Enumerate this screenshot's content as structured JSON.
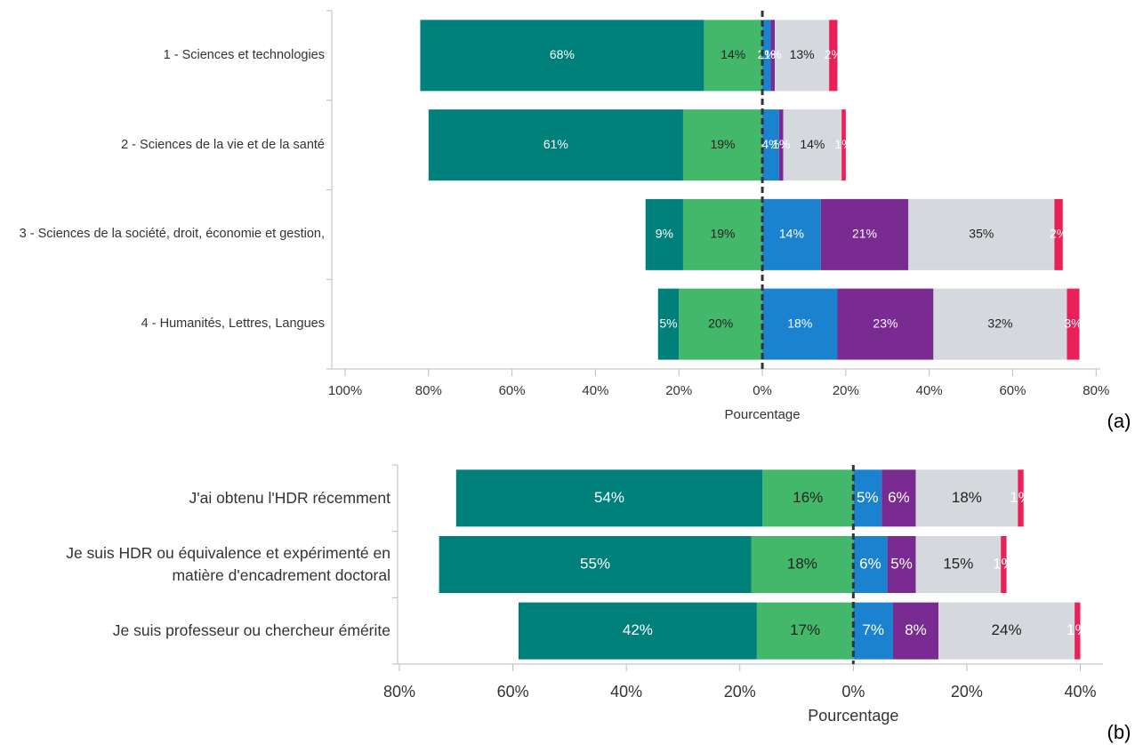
{
  "chart_data": [
    {
      "type": "diverging-bar",
      "x_label": "Pourcentage",
      "annotation": "(a)",
      "categories": [
        "1 - Sciences et technologies",
        "2 - Sciences de la vie et de la santé",
        "3 - Sciences de la société, droit, économie et gestion,",
        "4 - Humanités, Lettres, Langues"
      ],
      "series": [
        {
          "color": "#00807a",
          "label_color": "#ffffff",
          "side": "left",
          "values": [
            68,
            61,
            9,
            5
          ],
          "value_labels": [
            "68%",
            "61%",
            "9%",
            "5%"
          ]
        },
        {
          "color": "#43b86a",
          "label_color": "#222222",
          "side": "left",
          "values": [
            14,
            19,
            19,
            20
          ],
          "value_labels": [
            "14%",
            "19%",
            "19%",
            "20%"
          ]
        },
        {
          "color": "#1a82cf",
          "label_color": "#ffffff",
          "side": "right",
          "values": [
            2,
            4,
            14,
            18
          ],
          "value_labels": [
            "2%",
            "4%",
            "14%",
            "18%"
          ]
        },
        {
          "color": "#7a2b91",
          "label_color": "#ffffff",
          "side": "right",
          "values": [
            1,
            1,
            21,
            23
          ],
          "value_labels": [
            "1%",
            "1%",
            "21%",
            "23%"
          ]
        },
        {
          "color": "#d5d8dc",
          "label_color": "#222222",
          "side": "right",
          "values": [
            13,
            14,
            35,
            32
          ],
          "value_labels": [
            "13%",
            "14%",
            "35%",
            "32%"
          ]
        },
        {
          "color": "#ea2159",
          "label_color": "#ffffff",
          "side": "right",
          "values": [
            2,
            1,
            2,
            3
          ],
          "value_labels": [
            "2%",
            "1%",
            "2%",
            "3%"
          ]
        }
      ],
      "xlim": [
        -100,
        81
      ],
      "xticks": [
        {
          "value": -100,
          "label": "100%"
        },
        {
          "value": -80,
          "label": "80%"
        },
        {
          "value": -60,
          "label": "60%"
        },
        {
          "value": -40,
          "label": "40%"
        },
        {
          "value": -20,
          "label": "20%"
        },
        {
          "value": 0,
          "label": "0%"
        },
        {
          "value": 20,
          "label": "20%"
        },
        {
          "value": 40,
          "label": "40%"
        },
        {
          "value": 60,
          "label": "60%"
        },
        {
          "value": 80,
          "label": "80%"
        }
      ]
    },
    {
      "type": "diverging-bar",
      "x_label": "Pourcentage",
      "annotation": "(b)",
      "categories": [
        "J'ai obtenu l'HDR récemment",
        "Je suis HDR ou équivalence et expérimenté en matière d'encadrement doctoral",
        "Je suis professeur ou chercheur émérite"
      ],
      "series": [
        {
          "color": "#00807a",
          "label_color": "#ffffff",
          "side": "left",
          "values": [
            54,
            55,
            42
          ],
          "value_labels": [
            "54%",
            "55%",
            "42%"
          ]
        },
        {
          "color": "#43b86a",
          "label_color": "#222222",
          "side": "left",
          "values": [
            16,
            18,
            17
          ],
          "value_labels": [
            "16%",
            "18%",
            "17%"
          ]
        },
        {
          "color": "#1a82cf",
          "label_color": "#ffffff",
          "side": "right",
          "values": [
            5,
            6,
            7
          ],
          "value_labels": [
            "5%",
            "6%",
            "7%"
          ]
        },
        {
          "color": "#7a2b91",
          "label_color": "#ffffff",
          "side": "right",
          "values": [
            6,
            5,
            8
          ],
          "value_labels": [
            "6%",
            "5%",
            "8%"
          ]
        },
        {
          "color": "#d5d8dc",
          "label_color": "#222222",
          "side": "right",
          "values": [
            18,
            15,
            24
          ],
          "value_labels": [
            "18%",
            "15%",
            "24%"
          ]
        },
        {
          "color": "#ea2159",
          "label_color": "#ffffff",
          "side": "right",
          "values": [
            1,
            1,
            1
          ],
          "value_labels": [
            "1%",
            "1%",
            "1%"
          ]
        }
      ],
      "xlim": [
        -80,
        44
      ],
      "xticks": [
        {
          "value": -80,
          "label": "80%"
        },
        {
          "value": -60,
          "label": "60%"
        },
        {
          "value": -40,
          "label": "40%"
        },
        {
          "value": -20,
          "label": "20%"
        },
        {
          "value": 0,
          "label": "0%"
        },
        {
          "value": 20,
          "label": "20%"
        },
        {
          "value": 40,
          "label": "40%"
        }
      ]
    }
  ]
}
